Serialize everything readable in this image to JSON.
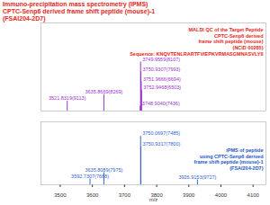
{
  "chart_data": [
    {
      "type": "stem",
      "title": [
        "Immuno-precipitation mass spectrometry (IPMS)",
        "CPTC-Senp6 derived frame shift peptide (mouse)-1",
        "(FSAI204-2D7)"
      ],
      "annotation": [
        "MALDI QC of the Target Peptide",
        "CPTC-Senp6 derived",
        "frame shift peptide (mouse)",
        "(NCID 00285)",
        "Sequence: KNQVTENLRARTFVIEPKVRMASGMNASVLYII"
      ],
      "x": [
        3521.8319,
        3635.8669,
        3748.904,
        3749.9559,
        3750.9307,
        3751.9666,
        3752.9468
      ],
      "values": [
        20,
        34,
        10,
        100,
        80,
        60,
        42
      ],
      "peak_labels": [
        "3521.8319(9113)",
        "3635.8669(8269)",
        "3748.9040(7436)",
        "3749.9559(8107)",
        "3750.9307(7993)",
        "3751.9666(6694)",
        "3752.9468(6503)"
      ],
      "color": "#9933cc",
      "xlim": [
        3440,
        4140
      ],
      "ylim": [
        0,
        180
      ],
      "tick_labels": false
    },
    {
      "type": "stem",
      "annotation": [
        "iPMS of peptide",
        "using CPTC-Senp6 derived",
        "frame shift peptide (mouse)-1",
        "(FSAI204-2D7)"
      ],
      "x": [
        3592.7307,
        3635.8089,
        3750.0697,
        3750.9317,
        3926.9153
      ],
      "values": [
        12,
        25,
        100,
        78,
        10
      ],
      "peak_labels": [
        "3592.7307(7668)",
        "3635.8089(7975)",
        "3750.0697(7485)",
        "3750.9317(7800)",
        "3926.9153(9727)"
      ],
      "color": "#3366cc",
      "xlim": [
        3440,
        4140
      ],
      "ylim": [
        0,
        130
      ],
      "xticks": [
        3500,
        3600,
        3700,
        3800,
        3900,
        4000,
        4100
      ],
      "xlabel": "m/z",
      "tick_labels": "x"
    }
  ]
}
